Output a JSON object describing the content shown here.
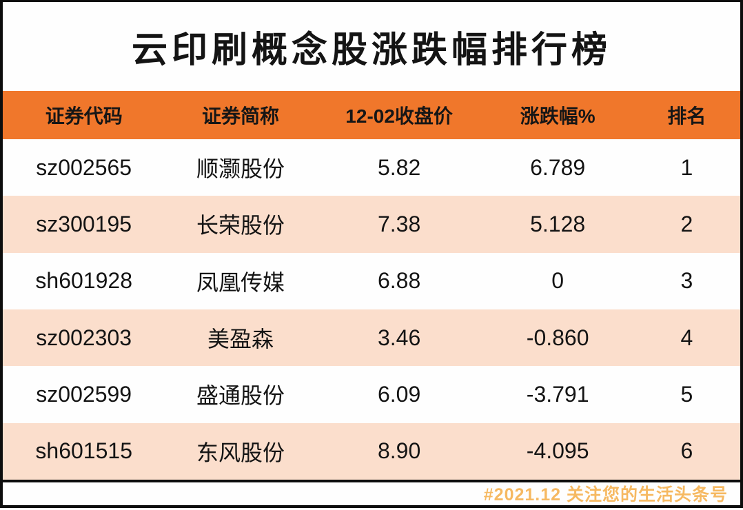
{
  "page": {
    "title": "云印刷概念股涨跌幅排行榜"
  },
  "table": {
    "headers": [
      "证券代码",
      "证券简称",
      "12-02收盘价",
      "涨跌幅%",
      "排名"
    ],
    "rows": [
      [
        "sz002565",
        "顺灏股份",
        "5.82",
        "6.789",
        "1"
      ],
      [
        "sz300195",
        "长荣股份",
        "7.38",
        "5.128",
        "2"
      ],
      [
        "sh601928",
        "凤凰传媒",
        "6.88",
        "0",
        "3"
      ],
      [
        "sz002303",
        "美盈森",
        "3.46",
        "-0.860",
        "4"
      ],
      [
        "sz002599",
        "盛通股份",
        "6.09",
        "-3.791",
        "5"
      ],
      [
        "sh601515",
        "东风股份",
        "8.90",
        "-4.095",
        "6"
      ]
    ]
  },
  "footer": {
    "watermark": "#2021.12 关注您的生活头条号"
  },
  "colors": {
    "header_bg": "#f0772b",
    "row_alt_bg": "#fbdecc",
    "frame": "#0d0d0d",
    "watermark": "#f5a93c",
    "title_text": "#141414"
  },
  "chart_data": {
    "type": "table",
    "title": "云印刷概念股涨跌幅排行榜",
    "columns": [
      "证券代码",
      "证券简称",
      "12-02收盘价",
      "涨跌幅%",
      "排名"
    ],
    "rows": [
      {
        "code": "sz002565",
        "name": "顺灏股份",
        "close_price": 5.82,
        "change_pct": 6.789,
        "rank": 1
      },
      {
        "code": "sz300195",
        "name": "长荣股份",
        "close_price": 7.38,
        "change_pct": 5.128,
        "rank": 2
      },
      {
        "code": "sh601928",
        "name": "凤凰传媒",
        "close_price": 6.88,
        "change_pct": 0,
        "rank": 3
      },
      {
        "code": "sz002303",
        "name": "美盈森",
        "close_price": 3.46,
        "change_pct": -0.86,
        "rank": 4
      },
      {
        "code": "sz002599",
        "name": "盛通股份",
        "close_price": 6.09,
        "change_pct": -3.791,
        "rank": 5
      },
      {
        "code": "sh601515",
        "name": "东风股份",
        "close_price": 8.9,
        "change_pct": -4.095,
        "rank": 6
      }
    ],
    "notes": "Ranking of cloud-printing concept stocks by daily price change percent on 12-02; alternating row striping, orange header"
  }
}
